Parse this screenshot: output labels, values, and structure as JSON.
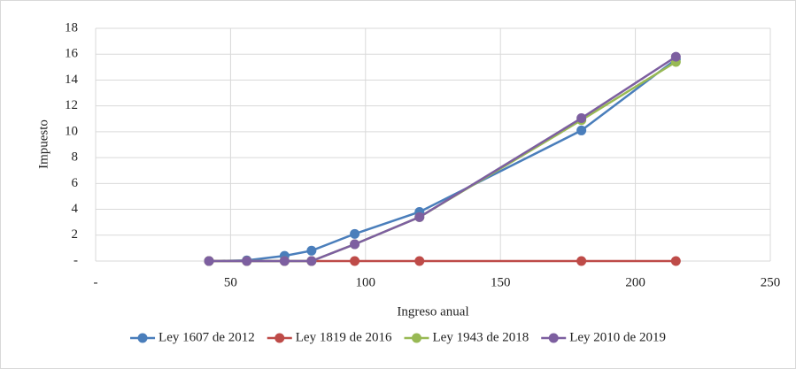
{
  "chart_data": {
    "type": "line",
    "x_label": "Ingreso anual",
    "y_label": "Impuesto",
    "x": [
      42,
      56,
      70,
      80,
      96,
      120,
      180,
      215
    ],
    "series": [
      {
        "name": "Ley 1607 de 2012",
        "color": "#4a7ebb",
        "values": [
          0,
          0.05,
          0.4,
          0.8,
          2.1,
          3.8,
          10.1,
          15.6
        ]
      },
      {
        "name": "Ley 1819 de 2016",
        "color": "#be4b48",
        "values": [
          0,
          0,
          0,
          0,
          0,
          0,
          0,
          0
        ]
      },
      {
        "name": "Ley 1943 de 2018",
        "color": "#98b954",
        "values": [
          0,
          0,
          0,
          0,
          1.3,
          3.4,
          10.9,
          15.4
        ]
      },
      {
        "name": "Ley 2010 de 2019",
        "color": "#7d5fa0",
        "values": [
          0,
          0,
          0,
          0,
          1.3,
          3.4,
          11.05,
          15.8
        ]
      }
    ],
    "xlim": [
      0,
      250
    ],
    "xticks": [
      {
        "value": 0,
        "label": "-"
      },
      50,
      100,
      150,
      200,
      250
    ],
    "ylim": [
      0,
      18
    ],
    "yticks": [
      {
        "value": 0,
        "label": "-"
      },
      2,
      4,
      6,
      8,
      10,
      12,
      14,
      16,
      18
    ],
    "grid": true,
    "legend": "bottom"
  }
}
